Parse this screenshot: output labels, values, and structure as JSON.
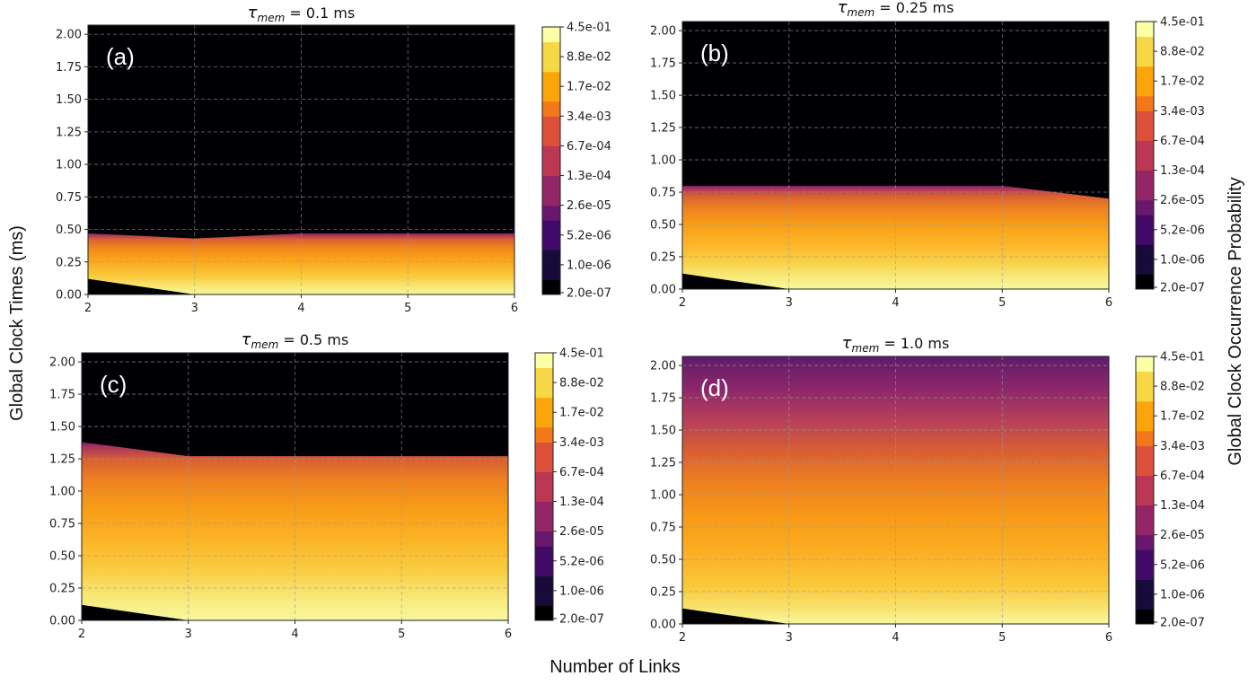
{
  "figure": {
    "xlabel": "Number of Links",
    "ylabel": "Global Clock Times (ms)",
    "colorbar_label": "Global Clock Occurrence Probability"
  },
  "chart_data": [
    {
      "type": "heatmap",
      "panel": "(a)",
      "title_prefix": "τ",
      "title_sub": "mem",
      "title_suffix": " = 0.1 ms",
      "x_ticks": [
        "2",
        "3",
        "4",
        "5",
        "6"
      ],
      "y_ticks": [
        "0.00",
        "0.25",
        "0.50",
        "0.75",
        "1.00",
        "1.25",
        "1.50",
        "1.75",
        "2.00"
      ],
      "xlim": [
        2,
        6
      ],
      "ylim": [
        0,
        2.07
      ],
      "grid": true,
      "support_max_ms": [
        0.47,
        0.43,
        0.47,
        0.47,
        0.47
      ],
      "black_wedge_ms": [
        0.12,
        0.0,
        0.0,
        0.0,
        0.0
      ],
      "colorbar": {
        "tick_labels": [
          "2.0e-07",
          "1.0e-06",
          "5.2e-06",
          "2.6e-05",
          "1.3e-04",
          "6.7e-04",
          "3.4e-03",
          "1.7e-02",
          "8.8e-02",
          "4.5e-01"
        ],
        "scale": "log",
        "colormap": "inferno"
      }
    },
    {
      "type": "heatmap",
      "panel": "(b)",
      "title_prefix": "τ",
      "title_sub": "mem",
      "title_suffix": " = 0.25 ms",
      "x_ticks": [
        "2",
        "3",
        "4",
        "5",
        "6"
      ],
      "y_ticks": [
        "0.00",
        "0.25",
        "0.50",
        "0.75",
        "1.00",
        "1.25",
        "1.50",
        "1.75",
        "2.00"
      ],
      "xlim": [
        2,
        6
      ],
      "ylim": [
        0,
        2.07
      ],
      "grid": true,
      "support_max_ms": [
        0.8,
        0.8,
        0.8,
        0.8,
        0.7
      ],
      "black_wedge_ms": [
        0.12,
        0.0,
        0.0,
        0.0,
        0.0
      ],
      "colorbar": {
        "tick_labels": [
          "2.0e-07",
          "1.0e-06",
          "5.2e-06",
          "2.6e-05",
          "1.3e-04",
          "6.7e-04",
          "3.4e-03",
          "1.7e-02",
          "8.8e-02",
          "4.5e-01"
        ],
        "scale": "log",
        "colormap": "inferno"
      }
    },
    {
      "type": "heatmap",
      "panel": "(c)",
      "title_prefix": "τ",
      "title_sub": "mem",
      "title_suffix": " = 0.5 ms",
      "x_ticks": [
        "2",
        "3",
        "4",
        "5",
        "6"
      ],
      "y_ticks": [
        "0.00",
        "0.25",
        "0.50",
        "0.75",
        "1.00",
        "1.25",
        "1.50",
        "1.75",
        "2.00"
      ],
      "xlim": [
        2,
        6
      ],
      "ylim": [
        0,
        2.07
      ],
      "grid": true,
      "support_max_ms": [
        1.38,
        1.27,
        1.27,
        1.27,
        1.27
      ],
      "black_wedge_ms": [
        0.12,
        0.0,
        0.0,
        0.0,
        0.0
      ],
      "colorbar": {
        "tick_labels": [
          "2.0e-07",
          "1.0e-06",
          "5.2e-06",
          "2.6e-05",
          "1.3e-04",
          "6.7e-04",
          "3.4e-03",
          "1.7e-02",
          "8.8e-02",
          "4.5e-01"
        ],
        "scale": "log",
        "colormap": "inferno"
      }
    },
    {
      "type": "heatmap",
      "panel": "(d)",
      "title_prefix": "τ",
      "title_sub": "mem",
      "title_suffix": " = 1.0 ms",
      "x_ticks": [
        "2",
        "3",
        "4",
        "5",
        "6"
      ],
      "y_ticks": [
        "0.00",
        "0.25",
        "0.50",
        "0.75",
        "1.00",
        "1.25",
        "1.50",
        "1.75",
        "2.00"
      ],
      "xlim": [
        2,
        6
      ],
      "ylim": [
        0,
        2.07
      ],
      "grid": true,
      "support_max_ms": [
        2.07,
        2.07,
        2.07,
        2.07,
        2.07
      ],
      "black_wedge_ms": [
        0.12,
        0.0,
        0.0,
        0.0,
        0.0
      ],
      "colorbar": {
        "tick_labels": [
          "2.0e-07",
          "1.0e-06",
          "5.2e-06",
          "2.6e-05",
          "1.3e-04",
          "6.7e-04",
          "3.4e-03",
          "1.7e-02",
          "8.8e-02",
          "4.5e-01"
        ],
        "scale": "log",
        "colormap": "inferno"
      }
    }
  ]
}
